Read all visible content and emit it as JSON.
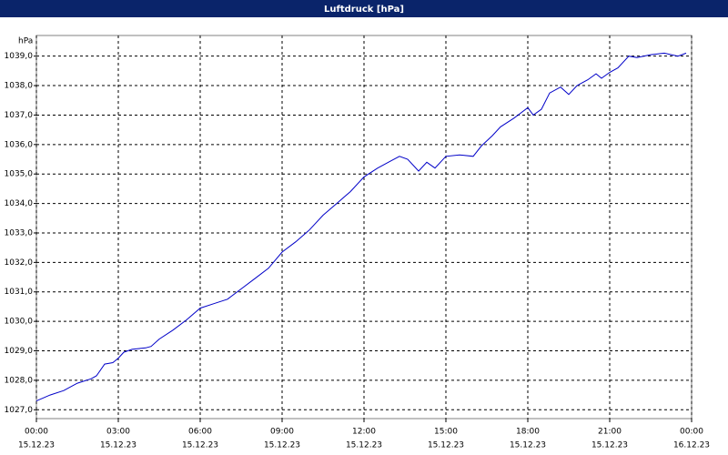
{
  "chart_data": {
    "type": "line",
    "title": "Luftdruck [hPa]",
    "y_unit": "hPa",
    "grid": true,
    "xlim": [
      0,
      24
    ],
    "ylim": [
      1026.7,
      1039.7
    ],
    "yticks": [
      {
        "value": 1027,
        "label": "1027,0"
      },
      {
        "value": 1028,
        "label": "1028,0"
      },
      {
        "value": 1029,
        "label": "1029,0"
      },
      {
        "value": 1030,
        "label": "1030,0"
      },
      {
        "value": 1031,
        "label": "1031,0"
      },
      {
        "value": 1032,
        "label": "1032,0"
      },
      {
        "value": 1033,
        "label": "1033,0"
      },
      {
        "value": 1034,
        "label": "1034,0"
      },
      {
        "value": 1035,
        "label": "1035,0"
      },
      {
        "value": 1036,
        "label": "1036,0"
      },
      {
        "value": 1037,
        "label": "1037,0"
      },
      {
        "value": 1038,
        "label": "1038,0"
      },
      {
        "value": 1039,
        "label": "1039,0"
      }
    ],
    "xticks": [
      {
        "value": 0,
        "label": "00:00",
        "date": "15.12.23"
      },
      {
        "value": 3,
        "label": "03:00",
        "date": "15.12.23"
      },
      {
        "value": 6,
        "label": "06:00",
        "date": "15.12.23"
      },
      {
        "value": 9,
        "label": "09:00",
        "date": "15.12.23"
      },
      {
        "value": 12,
        "label": "12:00",
        "date": "15.12.23"
      },
      {
        "value": 15,
        "label": "15:00",
        "date": "15.12.23"
      },
      {
        "value": 18,
        "label": "18:00",
        "date": "15.12.23"
      },
      {
        "value": 21,
        "label": "21:00",
        "date": "15.12.23"
      },
      {
        "value": 24,
        "label": "00:00",
        "date": "16.12.23"
      }
    ],
    "series": [
      {
        "name": "Luftdruck",
        "color": "#0000c8",
        "x": [
          0,
          0.5,
          1,
          1.5,
          2,
          2.2,
          2.5,
          2.8,
          3,
          3.2,
          3.5,
          4,
          4.2,
          4.5,
          5,
          5.5,
          6,
          6.5,
          7,
          7.5,
          8,
          8.5,
          9,
          9.5,
          10,
          10.5,
          11,
          11.5,
          12,
          12.5,
          13,
          13.3,
          13.6,
          14,
          14.3,
          14.6,
          15,
          15.5,
          16,
          16.3,
          16.7,
          17,
          17.5,
          18,
          18.2,
          18.5,
          18.8,
          19.2,
          19.5,
          19.8,
          20.2,
          20.5,
          20.7,
          21,
          21.3,
          21.7,
          22,
          22.5,
          23,
          23.5,
          23.8
        ],
        "values": [
          1027.3,
          1027.5,
          1027.65,
          1027.9,
          1028.05,
          1028.15,
          1028.55,
          1028.6,
          1028.75,
          1028.95,
          1029.05,
          1029.1,
          1029.15,
          1029.4,
          1029.7,
          1030.05,
          1030.45,
          1030.6,
          1030.75,
          1031.1,
          1031.45,
          1031.8,
          1032.35,
          1032.7,
          1033.1,
          1033.6,
          1034.0,
          1034.4,
          1034.9,
          1035.2,
          1035.45,
          1035.6,
          1035.5,
          1035.1,
          1035.4,
          1035.2,
          1035.6,
          1035.65,
          1035.6,
          1035.95,
          1036.3,
          1036.6,
          1036.9,
          1037.25,
          1037.0,
          1037.2,
          1037.75,
          1037.95,
          1037.7,
          1038.0,
          1038.2,
          1038.4,
          1038.25,
          1038.45,
          1038.6,
          1039.0,
          1038.95,
          1039.05,
          1039.1,
          1039.0,
          1039.1
        ]
      }
    ]
  }
}
